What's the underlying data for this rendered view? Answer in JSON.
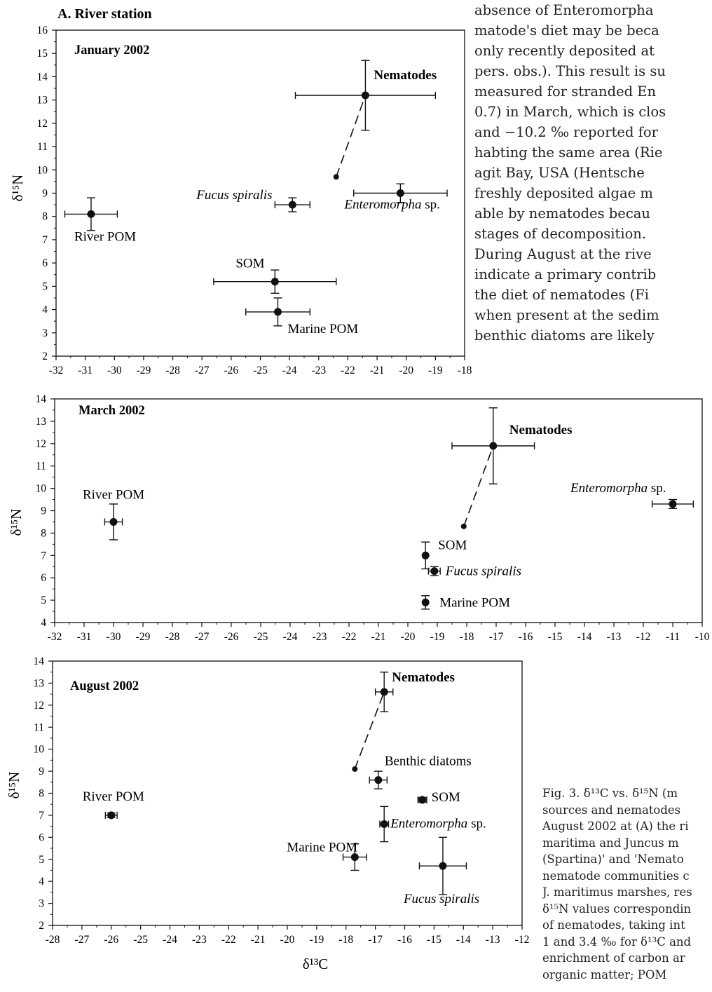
{
  "figure_heading": "A. River station",
  "body_text_lines": [
    "absence of Enteromorpha",
    "matode's diet may be beca",
    "only recently deposited at",
    "pers. obs.). This result is su",
    "measured for stranded En",
    "0.7) in March, which is clos",
    "and −10.2 ‰ reported for",
    "habting the same area (Rie",
    "agit Bay, USA (Hentsche",
    "freshly deposited algae m",
    "able by nematodes becau",
    "stages of decomposition.",
    "  During August at the rive",
    "indicate a primary contrib",
    "the diet of nematodes (Fi",
    "when present at the sedim",
    "benthic diatoms are likely"
  ],
  "caption_lines": [
    "Fig. 3. δ¹³C vs. δ¹⁵N (m",
    "sources and nematodes",
    "August 2002 at (A) the ri",
    "maritima and Juncus m",
    "(Spartina)' and 'Nemato",
    "nematode communities c",
    "J. maritimus marshes, res",
    "δ¹⁵N values correspondin",
    "of nematodes, taking int",
    "1 and 3.4 ‰ for δ¹³C and",
    "enrichment of carbon ar",
    "organic matter; POM"
  ],
  "y_axis_label": "δ¹⁵N",
  "x_axis_label": "δ¹³C",
  "chart_data": [
    {
      "type": "scatter",
      "title": "January 2002",
      "xlim": [
        -32,
        -18
      ],
      "ylim": [
        2,
        16
      ],
      "xticks": [
        -32,
        -31,
        -30,
        -29,
        -28,
        -27,
        -26,
        -25,
        -24,
        -23,
        -22,
        -21,
        -20,
        -19,
        -18
      ],
      "yticks": [
        2,
        3,
        4,
        5,
        6,
        7,
        8,
        9,
        10,
        11,
        12,
        13,
        14,
        15,
        16
      ],
      "points": [
        {
          "label": "Nematodes",
          "x": -21.4,
          "y": 13.2,
          "xerr": 2.4,
          "yerr": 1.5,
          "bold": true
        },
        {
          "label": "Enteromorpha sp.",
          "x": -20.2,
          "y": 9.0,
          "xerr": 1.6,
          "yerr": 0.4,
          "italic": true
        },
        {
          "label": "Fucus spiralis",
          "x": -23.9,
          "y": 8.5,
          "xerr": 0.6,
          "yerr": 0.3,
          "italic": true
        },
        {
          "label": "River POM",
          "x": -30.8,
          "y": 8.1,
          "xerr": 0.9,
          "yerr": 0.7
        },
        {
          "label": "SOM",
          "x": -24.5,
          "y": 5.2,
          "xerr": 2.1,
          "yerr": 0.5
        },
        {
          "label": "Marine POM",
          "x": -24.4,
          "y": 3.9,
          "xerr": 1.1,
          "yerr": 0.6
        }
      ],
      "corrected_point": {
        "x": -22.4,
        "y": 9.7
      }
    },
    {
      "type": "scatter",
      "title": "March 2002",
      "xlim": [
        -32,
        -10
      ],
      "ylim": [
        4,
        14
      ],
      "xticks": [
        -32,
        -31,
        -30,
        -29,
        -28,
        -27,
        -26,
        -25,
        -24,
        -23,
        -22,
        -21,
        -20,
        -19,
        -18,
        -17,
        -16,
        -15,
        -14,
        -13,
        -12,
        -11,
        -10
      ],
      "yticks": [
        4,
        5,
        6,
        7,
        8,
        9,
        10,
        11,
        12,
        13,
        14
      ],
      "points": [
        {
          "label": "Nematodes",
          "x": -17.1,
          "y": 11.9,
          "xerr": 1.4,
          "yerr": 1.7,
          "bold": true
        },
        {
          "label": "Enteromorpha sp.",
          "x": -11.0,
          "y": 9.3,
          "xerr": 0.7,
          "yerr": 0.2,
          "italic": true
        },
        {
          "label": "River POM",
          "x": -30.0,
          "y": 8.5,
          "xerr": 0.3,
          "yerr": 0.8
        },
        {
          "label": "SOM",
          "x": -19.4,
          "y": 7.0,
          "xerr": 0.05,
          "yerr": 0.6
        },
        {
          "label": "Fucus spiralis",
          "x": -19.1,
          "y": 6.3,
          "xerr": 0.2,
          "yerr": 0.2,
          "italic": true
        },
        {
          "label": "Marine POM",
          "x": -19.4,
          "y": 4.9,
          "xerr": 0.05,
          "yerr": 0.3
        }
      ],
      "corrected_point": {
        "x": -18.1,
        "y": 8.3
      }
    },
    {
      "type": "scatter",
      "title": "August 2002",
      "xlim": [
        -28,
        -12
      ],
      "ylim": [
        2,
        14
      ],
      "xticks": [
        -28,
        -27,
        -26,
        -25,
        -24,
        -23,
        -22,
        -21,
        -20,
        -19,
        -18,
        -17,
        -16,
        -15,
        -14,
        -13,
        -12
      ],
      "yticks": [
        2,
        3,
        4,
        5,
        6,
        7,
        8,
        9,
        10,
        11,
        12,
        13,
        14
      ],
      "points": [
        {
          "label": "Nematodes",
          "x": -16.7,
          "y": 12.6,
          "xerr": 0.3,
          "yerr": 0.9,
          "bold": true
        },
        {
          "label": "Benthic diatoms",
          "x": -16.9,
          "y": 8.6,
          "xerr": 0.3,
          "yerr": 0.4
        },
        {
          "label": "SOM",
          "x": -15.4,
          "y": 7.7,
          "xerr": 0.15,
          "yerr": 0.1
        },
        {
          "label": "Enteromorpha sp.",
          "x": -16.7,
          "y": 6.6,
          "xerr": 0.15,
          "yerr": 0.8,
          "italic": true
        },
        {
          "label": "Marine POM",
          "x": -17.7,
          "y": 5.1,
          "xerr": 0.4,
          "yerr": 0.6
        },
        {
          "label": "Fucus spiralis",
          "x": -14.7,
          "y": 4.7,
          "xerr": 0.8,
          "yerr": 1.3,
          "italic": true
        },
        {
          "label": "River POM",
          "x": -26.0,
          "y": 7.0,
          "xerr": 0.2,
          "yerr": 0.1
        }
      ],
      "corrected_point": {
        "x": -17.7,
        "y": 9.1
      }
    }
  ]
}
